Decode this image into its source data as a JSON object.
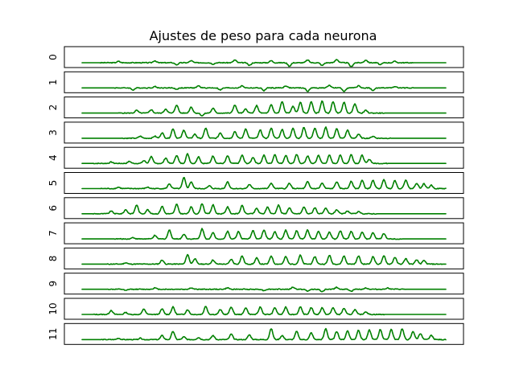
{
  "chart_data": {
    "type": "line",
    "title": "Ajustes de peso para cada neurona",
    "grid": false,
    "legend": "none",
    "x_ticks_shown": false,
    "y_ticks_shown": false,
    "line_color": "#008000",
    "series": [
      {
        "label": "0",
        "baseline": 0.0,
        "bumps": [
          [
            0.1,
            0.1
          ],
          [
            0.2,
            0.15
          ],
          [
            0.26,
            -0.15
          ],
          [
            0.3,
            0.15
          ],
          [
            0.36,
            -0.1
          ],
          [
            0.42,
            0.2
          ],
          [
            0.46,
            -0.2
          ],
          [
            0.52,
            0.15
          ],
          [
            0.57,
            -0.25
          ],
          [
            0.62,
            0.2
          ],
          [
            0.66,
            -0.2
          ],
          [
            0.7,
            0.25
          ],
          [
            0.74,
            -0.3
          ],
          [
            0.78,
            0.2
          ],
          [
            0.82,
            -0.15
          ],
          [
            0.86,
            0.1
          ]
        ]
      },
      {
        "label": "1",
        "baseline": 0.0,
        "bumps": [
          [
            0.14,
            -0.15
          ],
          [
            0.2,
            0.1
          ],
          [
            0.26,
            -0.1
          ],
          [
            0.32,
            0.15
          ],
          [
            0.38,
            -0.15
          ],
          [
            0.44,
            0.15
          ],
          [
            0.5,
            -0.2
          ],
          [
            0.56,
            0.15
          ],
          [
            0.62,
            -0.25
          ],
          [
            0.68,
            0.2
          ],
          [
            0.72,
            -0.25
          ],
          [
            0.76,
            0.15
          ],
          [
            0.8,
            -0.2
          ],
          [
            0.86,
            0.1
          ]
        ]
      },
      {
        "label": "2",
        "baseline": 0.0,
        "bumps": [
          [
            0.15,
            0.2
          ],
          [
            0.19,
            0.25
          ],
          [
            0.23,
            0.3
          ],
          [
            0.26,
            0.6
          ],
          [
            0.3,
            0.45
          ],
          [
            0.33,
            -0.2
          ],
          [
            0.36,
            0.35
          ],
          [
            0.42,
            0.6
          ],
          [
            0.45,
            0.3
          ],
          [
            0.48,
            0.55
          ],
          [
            0.52,
            0.6
          ],
          [
            0.55,
            0.85
          ],
          [
            0.58,
            0.5
          ],
          [
            0.6,
            0.8
          ],
          [
            0.63,
            0.85
          ],
          [
            0.66,
            0.9
          ],
          [
            0.69,
            0.85
          ],
          [
            0.72,
            0.8
          ],
          [
            0.75,
            0.7
          ],
          [
            0.78,
            0.2
          ]
        ]
      },
      {
        "label": "3",
        "baseline": 0.0,
        "bumps": [
          [
            0.16,
            0.15
          ],
          [
            0.2,
            0.15
          ],
          [
            0.22,
            0.4
          ],
          [
            0.25,
            0.7
          ],
          [
            0.28,
            0.6
          ],
          [
            0.31,
            0.3
          ],
          [
            0.34,
            0.75
          ],
          [
            0.38,
            0.4
          ],
          [
            0.42,
            0.5
          ],
          [
            0.45,
            0.7
          ],
          [
            0.49,
            0.6
          ],
          [
            0.52,
            0.75
          ],
          [
            0.55,
            0.65
          ],
          [
            0.58,
            0.75
          ],
          [
            0.61,
            0.8
          ],
          [
            0.64,
            0.75
          ],
          [
            0.67,
            0.8
          ],
          [
            0.7,
            0.7
          ],
          [
            0.73,
            0.6
          ],
          [
            0.76,
            0.3
          ],
          [
            0.8,
            0.15
          ]
        ]
      },
      {
        "label": "4",
        "baseline": 0.0,
        "bumps": [
          [
            0.08,
            0.1
          ],
          [
            0.13,
            0.15
          ],
          [
            0.17,
            0.2
          ],
          [
            0.19,
            0.5
          ],
          [
            0.23,
            0.4
          ],
          [
            0.26,
            0.6
          ],
          [
            0.29,
            0.7
          ],
          [
            0.32,
            0.5
          ],
          [
            0.36,
            0.55
          ],
          [
            0.4,
            0.55
          ],
          [
            0.44,
            0.6
          ],
          [
            0.47,
            0.45
          ],
          [
            0.5,
            0.6
          ],
          [
            0.53,
            0.65
          ],
          [
            0.56,
            0.6
          ],
          [
            0.59,
            0.65
          ],
          [
            0.62,
            0.55
          ],
          [
            0.65,
            0.6
          ],
          [
            0.68,
            0.6
          ],
          [
            0.71,
            0.6
          ],
          [
            0.74,
            0.65
          ],
          [
            0.77,
            0.6
          ],
          [
            0.79,
            0.3
          ]
        ]
      },
      {
        "label": "5",
        "baseline": 0.0,
        "bumps": [
          [
            0.1,
            0.1
          ],
          [
            0.18,
            0.1
          ],
          [
            0.24,
            0.35
          ],
          [
            0.28,
            0.8
          ],
          [
            0.3,
            0.5
          ],
          [
            0.35,
            0.2
          ],
          [
            0.4,
            0.5
          ],
          [
            0.46,
            0.3
          ],
          [
            0.52,
            0.4
          ],
          [
            0.57,
            0.4
          ],
          [
            0.62,
            0.5
          ],
          [
            0.66,
            0.4
          ],
          [
            0.7,
            0.5
          ],
          [
            0.74,
            0.55
          ],
          [
            0.77,
            0.6
          ],
          [
            0.8,
            0.6
          ],
          [
            0.83,
            0.65
          ],
          [
            0.86,
            0.6
          ],
          [
            0.89,
            0.65
          ],
          [
            0.92,
            0.4
          ],
          [
            0.94,
            0.35
          ],
          [
            0.96,
            0.25
          ]
        ]
      },
      {
        "label": "6",
        "baseline": 0.0,
        "bumps": [
          [
            0.08,
            0.2
          ],
          [
            0.12,
            0.3
          ],
          [
            0.15,
            0.65
          ],
          [
            0.18,
            0.3
          ],
          [
            0.22,
            0.55
          ],
          [
            0.26,
            0.7
          ],
          [
            0.3,
            0.5
          ],
          [
            0.33,
            0.75
          ],
          [
            0.36,
            0.65
          ],
          [
            0.4,
            0.5
          ],
          [
            0.44,
            0.6
          ],
          [
            0.48,
            0.4
          ],
          [
            0.51,
            0.5
          ],
          [
            0.54,
            0.65
          ],
          [
            0.57,
            0.45
          ],
          [
            0.61,
            0.5
          ],
          [
            0.64,
            0.45
          ],
          [
            0.67,
            0.4
          ],
          [
            0.7,
            0.3
          ],
          [
            0.73,
            0.2
          ],
          [
            0.76,
            0.15
          ]
        ]
      },
      {
        "label": "7",
        "baseline": 0.0,
        "bumps": [
          [
            0.14,
            0.1
          ],
          [
            0.2,
            0.25
          ],
          [
            0.24,
            0.65
          ],
          [
            0.28,
            0.35
          ],
          [
            0.33,
            0.75
          ],
          [
            0.36,
            0.45
          ],
          [
            0.4,
            0.55
          ],
          [
            0.43,
            0.55
          ],
          [
            0.47,
            0.6
          ],
          [
            0.5,
            0.65
          ],
          [
            0.53,
            0.55
          ],
          [
            0.56,
            0.65
          ],
          [
            0.59,
            0.6
          ],
          [
            0.62,
            0.65
          ],
          [
            0.65,
            0.55
          ],
          [
            0.68,
            0.5
          ],
          [
            0.71,
            0.6
          ],
          [
            0.74,
            0.55
          ],
          [
            0.77,
            0.5
          ],
          [
            0.8,
            0.45
          ],
          [
            0.83,
            0.4
          ]
        ]
      },
      {
        "label": "8",
        "baseline": 0.0,
        "bumps": [
          [
            0.12,
            0.1
          ],
          [
            0.22,
            0.3
          ],
          [
            0.29,
            0.7
          ],
          [
            0.31,
            0.4
          ],
          [
            0.36,
            0.3
          ],
          [
            0.41,
            0.35
          ],
          [
            0.44,
            0.6
          ],
          [
            0.48,
            0.45
          ],
          [
            0.52,
            0.6
          ],
          [
            0.56,
            0.55
          ],
          [
            0.6,
            0.65
          ],
          [
            0.64,
            0.55
          ],
          [
            0.68,
            0.65
          ],
          [
            0.72,
            0.6
          ],
          [
            0.76,
            0.6
          ],
          [
            0.8,
            0.55
          ],
          [
            0.83,
            0.6
          ],
          [
            0.86,
            0.5
          ],
          [
            0.89,
            0.4
          ],
          [
            0.92,
            0.3
          ],
          [
            0.94,
            0.25
          ]
        ]
      },
      {
        "label": "9",
        "baseline": 0.0,
        "bumps": [
          [
            0.12,
            -0.1
          ],
          [
            0.2,
            0.1
          ],
          [
            0.3,
            0.1
          ],
          [
            0.4,
            0.1
          ],
          [
            0.5,
            -0.1
          ],
          [
            0.58,
            0.15
          ],
          [
            0.62,
            -0.15
          ],
          [
            0.66,
            -0.2
          ],
          [
            0.7,
            0.15
          ],
          [
            0.74,
            -0.15
          ],
          [
            0.78,
            0.1
          ],
          [
            0.84,
            0.1
          ]
        ]
      },
      {
        "label": "10",
        "baseline": 0.0,
        "bumps": [
          [
            0.08,
            0.3
          ],
          [
            0.12,
            0.15
          ],
          [
            0.17,
            0.4
          ],
          [
            0.22,
            0.4
          ],
          [
            0.25,
            0.55
          ],
          [
            0.29,
            0.35
          ],
          [
            0.34,
            0.6
          ],
          [
            0.38,
            0.35
          ],
          [
            0.41,
            0.55
          ],
          [
            0.45,
            0.5
          ],
          [
            0.49,
            0.55
          ],
          [
            0.53,
            0.5
          ],
          [
            0.56,
            0.55
          ],
          [
            0.6,
            0.55
          ],
          [
            0.63,
            0.5
          ],
          [
            0.66,
            0.5
          ],
          [
            0.69,
            0.5
          ],
          [
            0.72,
            0.45
          ],
          [
            0.75,
            0.35
          ],
          [
            0.78,
            0.2
          ]
        ]
      },
      {
        "label": "11",
        "baseline": 0.0,
        "bumps": [
          [
            0.1,
            0.1
          ],
          [
            0.16,
            0.1
          ],
          [
            0.22,
            0.3
          ],
          [
            0.25,
            0.6
          ],
          [
            0.28,
            0.2
          ],
          [
            0.32,
            0.15
          ],
          [
            0.36,
            0.3
          ],
          [
            0.41,
            0.4
          ],
          [
            0.46,
            0.35
          ],
          [
            0.52,
            0.8
          ],
          [
            0.55,
            0.3
          ],
          [
            0.59,
            0.6
          ],
          [
            0.63,
            0.5
          ],
          [
            0.67,
            0.8
          ],
          [
            0.7,
            0.6
          ],
          [
            0.73,
            0.65
          ],
          [
            0.76,
            0.7
          ],
          [
            0.79,
            0.7
          ],
          [
            0.82,
            0.75
          ],
          [
            0.85,
            0.75
          ],
          [
            0.88,
            0.8
          ],
          [
            0.91,
            0.6
          ],
          [
            0.93,
            0.45
          ],
          [
            0.96,
            0.3
          ]
        ]
      }
    ]
  }
}
